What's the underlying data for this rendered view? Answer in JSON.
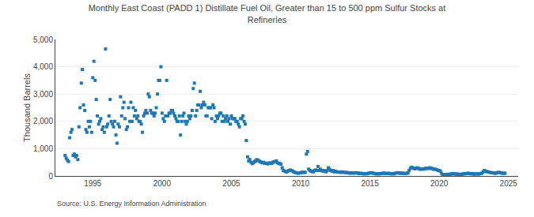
{
  "chart_data": {
    "type": "scatter",
    "title": "Monthly East Coast (PADD 1) Distillate Fuel Oil, Greater than 15 to 500 ppm Sulfur Stocks at\nRefineries",
    "ylabel": "Thousand Barrels",
    "annotations": [
      "Source: U.S. Energy Information Administration"
    ],
    "marker": "square",
    "grid": true,
    "xlim": [
      1992.3,
      2025.7
    ],
    "xticks": [
      1995,
      2000,
      2005,
      2010,
      2015,
      2020,
      2025
    ],
    "ylim": [
      0,
      5000
    ],
    "yticks": [
      0,
      {
        "value": 1000,
        "label": "1,000"
      },
      {
        "value": 2000,
        "label": "2,000"
      },
      {
        "value": 3000,
        "label": "3,000"
      },
      {
        "value": 4000,
        "label": "4,000"
      },
      {
        "value": 5000,
        "label": "5,000"
      }
    ],
    "x": [
      1993.0,
      1993.08,
      1993.17,
      1993.25,
      1993.33,
      1993.42,
      1993.5,
      1993.58,
      1993.67,
      1993.75,
      1993.83,
      1993.92,
      1994.0,
      1994.08,
      1994.17,
      1994.25,
      1994.33,
      1994.42,
      1994.5,
      1994.58,
      1994.67,
      1994.75,
      1994.83,
      1994.92,
      1995.0,
      1995.08,
      1995.17,
      1995.25,
      1995.33,
      1995.42,
      1995.5,
      1995.58,
      1995.67,
      1995.75,
      1995.83,
      1995.92,
      1996.0,
      1996.08,
      1996.17,
      1996.25,
      1996.33,
      1996.42,
      1996.5,
      1996.58,
      1996.67,
      1996.75,
      1996.83,
      1996.92,
      1997.0,
      1997.08,
      1997.17,
      1997.25,
      1997.33,
      1997.42,
      1997.5,
      1997.58,
      1997.67,
      1997.75,
      1997.83,
      1997.92,
      1998.0,
      1998.08,
      1998.17,
      1998.25,
      1998.33,
      1998.42,
      1998.5,
      1998.58,
      1998.67,
      1998.75,
      1998.83,
      1998.92,
      1999.0,
      1999.08,
      1999.17,
      1999.25,
      1999.33,
      1999.42,
      1999.5,
      1999.58,
      1999.67,
      1999.75,
      1999.83,
      1999.92,
      2000.0,
      2000.08,
      2000.17,
      2000.25,
      2000.33,
      2000.42,
      2000.5,
      2000.58,
      2000.67,
      2000.75,
      2000.83,
      2000.92,
      2001.0,
      2001.08,
      2001.17,
      2001.25,
      2001.33,
      2001.42,
      2001.5,
      2001.58,
      2001.67,
      2001.75,
      2001.83,
      2001.92,
      2002.0,
      2002.08,
      2002.17,
      2002.25,
      2002.33,
      2002.42,
      2002.5,
      2002.58,
      2002.67,
      2002.75,
      2002.83,
      2002.92,
      2003.0,
      2003.08,
      2003.17,
      2003.25,
      2003.33,
      2003.42,
      2003.5,
      2003.58,
      2003.67,
      2003.75,
      2003.83,
      2003.92,
      2004.0,
      2004.08,
      2004.17,
      2004.25,
      2004.33,
      2004.42,
      2004.5,
      2004.58,
      2004.67,
      2004.75,
      2004.83,
      2004.92,
      2005.0,
      2005.08,
      2005.17,
      2005.25,
      2005.33,
      2005.42,
      2005.5,
      2005.58,
      2005.67,
      2005.75,
      2005.83,
      2005.92,
      2006.0,
      2006.08,
      2006.17,
      2006.25,
      2006.33,
      2006.42,
      2006.5,
      2006.58,
      2006.67,
      2006.75,
      2006.83,
      2006.92,
      2007.0,
      2007.08,
      2007.17,
      2007.25,
      2007.33,
      2007.42,
      2007.5,
      2007.58,
      2007.67,
      2007.75,
      2007.83,
      2007.92,
      2008.0,
      2008.08,
      2008.17,
      2008.25,
      2008.33,
      2008.42,
      2008.5,
      2008.58,
      2008.67,
      2008.75,
      2008.83,
      2008.92,
      2009.0,
      2009.08,
      2009.17,
      2009.25,
      2009.33,
      2009.42,
      2009.5,
      2009.58,
      2009.67,
      2009.75,
      2009.83,
      2009.92,
      2010.0,
      2010.08,
      2010.17,
      2010.25,
      2010.33,
      2010.42,
      2010.5,
      2010.58,
      2010.67,
      2010.75,
      2010.83,
      2010.92,
      2011.0,
      2011.08,
      2011.17,
      2011.25,
      2011.33,
      2011.42,
      2011.5,
      2011.58,
      2011.67,
      2011.75,
      2011.83,
      2011.92,
      2012.0,
      2012.08,
      2012.17,
      2012.25,
      2012.33,
      2012.42,
      2012.5,
      2012.58,
      2012.67,
      2012.75,
      2012.83,
      2012.92,
      2013.0,
      2013.08,
      2013.17,
      2013.25,
      2013.33,
      2013.42,
      2013.5,
      2013.58,
      2013.67,
      2013.75,
      2013.83,
      2013.92,
      2014.0,
      2014.08,
      2014.17,
      2014.25,
      2014.33,
      2014.42,
      2014.5,
      2014.58,
      2014.67,
      2014.75,
      2014.83,
      2014.92,
      2015.0,
      2015.08,
      2015.17,
      2015.25,
      2015.33,
      2015.42,
      2015.5,
      2015.58,
      2015.67,
      2015.75,
      2015.83,
      2015.92,
      2016.0,
      2016.08,
      2016.17,
      2016.25,
      2016.33,
      2016.42,
      2016.5,
      2016.58,
      2016.67,
      2016.75,
      2016.83,
      2016.92,
      2017.0,
      2017.08,
      2017.17,
      2017.25,
      2017.33,
      2017.42,
      2017.5,
      2017.58,
      2017.67,
      2017.75,
      2017.83,
      2017.92,
      2018.0,
      2018.08,
      2018.17,
      2018.25,
      2018.33,
      2018.42,
      2018.5,
      2018.58,
      2018.67,
      2018.75,
      2018.83,
      2018.92,
      2019.0,
      2019.08,
      2019.17,
      2019.25,
      2019.33,
      2019.42,
      2019.5,
      2019.58,
      2019.67,
      2019.75,
      2019.83,
      2019.92,
      2020.0,
      2020.08,
      2020.17,
      2020.25,
      2020.33,
      2020.42,
      2020.5,
      2020.58,
      2020.67,
      2020.75,
      2020.83,
      2020.92,
      2021.0,
      2021.08,
      2021.17,
      2021.25,
      2021.33,
      2021.42,
      2021.5,
      2021.58,
      2021.67,
      2021.75,
      2021.83,
      2021.92,
      2022.0,
      2022.08,
      2022.17,
      2022.25,
      2022.33,
      2022.42,
      2022.5,
      2022.58,
      2022.67,
      2022.75,
      2022.83,
      2022.92,
      2023.0,
      2023.08,
      2023.17,
      2023.25,
      2023.33,
      2023.42,
      2023.5,
      2023.58,
      2023.67,
      2023.75,
      2023.83,
      2023.92,
      2024.0,
      2024.08,
      2024.17,
      2024.25,
      2024.33,
      2024.42,
      2024.5,
      2024.58,
      2024.67,
      2024.75
    ],
    "values": [
      750,
      650,
      580,
      530,
      1400,
      1600,
      1700,
      750,
      800,
      700,
      750,
      600,
      1800,
      2500,
      3400,
      3900,
      2600,
      2400,
      1700,
      1600,
      2000,
      1800,
      2000,
      1600,
      3600,
      4200,
      3500,
      2800,
      2200,
      1900,
      2000,
      2100,
      1700,
      1800,
      1600,
      4650,
      1800,
      1900,
      2200,
      2800,
      2000,
      1900,
      1800,
      2000,
      1500,
      1200,
      1900,
      1800,
      2900,
      2200,
      2500,
      2700,
      2100,
      1700,
      1800,
      2500,
      2000,
      2700,
      2000,
      2500,
      2200,
      2400,
      2100,
      2200,
      2000,
      2000,
      1900,
      1600,
      2200,
      2300,
      2400,
      2300,
      3000,
      2900,
      2400,
      2300,
      2300,
      2200,
      2300,
      2500,
      3000,
      3500,
      3500,
      4000,
      2300,
      2100,
      2000,
      2200,
      3500,
      2200,
      2300,
      2300,
      2400,
      2400,
      2300,
      2200,
      2100,
      2000,
      2000,
      2200,
      1500,
      2000,
      2200,
      2300,
      2000,
      1900,
      2000,
      2200,
      2100,
      2200,
      2400,
      3200,
      3400,
      2200,
      2400,
      2600,
      2600,
      3100,
      2500,
      2600,
      2700,
      2600,
      2200,
      2200,
      2500,
      2500,
      2500,
      2100,
      2600,
      2500,
      2000,
      2200,
      2100,
      2200,
      2300,
      2300,
      2000,
      2200,
      2000,
      2100,
      2200,
      2000,
      2100,
      1900,
      2200,
      2100,
      2100,
      2100,
      2000,
      2000,
      1900,
      1800,
      2100,
      2100,
      2200,
      2000,
      1900,
      1300,
      700,
      550,
      600,
      500,
      450,
      480,
      520,
      550,
      600,
      580,
      550,
      520,
      500,
      480,
      500,
      460,
      470,
      450,
      450,
      480,
      470,
      460,
      500,
      520,
      530,
      550,
      480,
      460,
      450,
      430,
      300,
      200,
      180,
      160,
      150,
      180,
      200,
      220,
      200,
      180,
      150,
      130,
      120,
      110,
      100,
      110,
      120,
      130,
      140,
      130,
      130,
      800,
      900,
      250,
      200,
      180,
      160,
      150,
      200,
      220,
      200,
      350,
      200,
      250,
      200,
      180,
      200,
      180,
      150,
      200,
      300,
      250,
      200,
      180,
      200,
      150,
      180,
      150,
      150,
      140,
      140,
      130,
      150,
      140,
      130,
      120,
      130,
      120,
      110,
      100,
      120,
      110,
      100,
      110,
      120,
      110,
      100,
      90,
      100,
      90,
      80,
      80,
      80,
      80,
      90,
      100,
      110,
      120,
      110,
      100,
      90,
      80,
      80,
      80,
      80,
      80,
      90,
      100,
      100,
      100,
      90,
      90,
      100,
      90,
      80,
      80,
      80,
      80,
      100,
      110,
      120,
      110,
      100,
      100,
      100,
      100,
      90,
      90,
      100,
      110,
      200,
      280,
      320,
      300,
      280,
      260,
      280,
      300,
      280,
      250,
      250,
      250,
      260,
      250,
      280,
      280,
      270,
      280,
      300,
      280,
      270,
      250,
      250,
      240,
      230,
      200,
      200,
      180,
      100,
      50,
      40,
      50,
      50,
      60,
      60,
      60,
      70,
      80,
      80,
      80,
      70,
      70,
      70,
      60,
      60,
      60,
      70,
      80,
      80,
      80,
      90,
      100,
      90,
      80,
      80,
      80,
      70,
      70,
      80,
      80,
      70,
      80,
      90,
      100,
      150,
      200,
      180,
      160,
      150,
      140,
      130,
      120,
      120,
      110,
      100,
      100,
      120,
      130,
      130,
      120,
      110,
      100,
      100,
      100
    ]
  }
}
